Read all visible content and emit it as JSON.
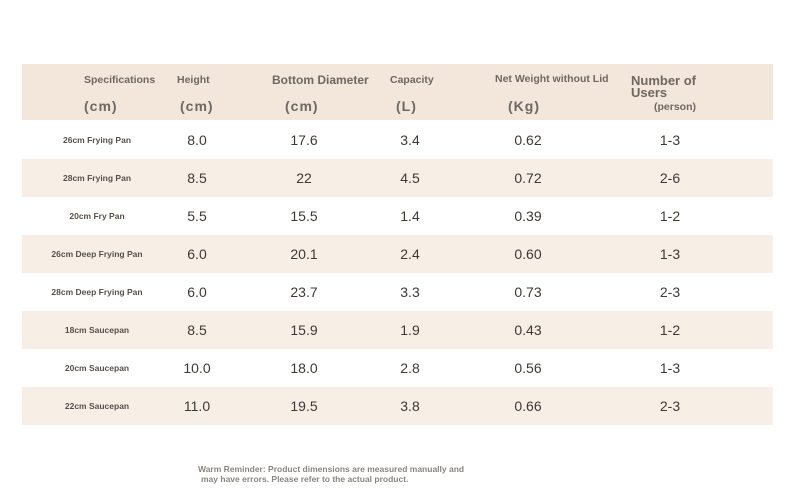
{
  "headers": [
    {
      "line1": "Specifications",
      "line2": "(cm)"
    },
    {
      "line1": "Height",
      "line2": "(cm)"
    },
    {
      "line1": "Bottom Diameter",
      "line2": "(cm)"
    },
    {
      "line1": "Capacity",
      "line2": "(L)"
    },
    {
      "line1": "Net Weight without Lid",
      "line2": "(Kg)"
    },
    {
      "line1": "Number of Users",
      "line2": "(person)"
    }
  ],
  "rows": [
    {
      "name": "26cm Frying Pan",
      "height": "8.0",
      "diameter": "17.6",
      "capacity": "3.4",
      "weight": "0.62",
      "users": "1-3"
    },
    {
      "name": "28cm Frying Pan",
      "height": "8.5",
      "diameter": "22",
      "capacity": "4.5",
      "weight": "0.72",
      "users": "2-6"
    },
    {
      "name": "20cm Fry Pan",
      "height": "5.5",
      "diameter": "15.5",
      "capacity": "1.4",
      "weight": "0.39",
      "users": "1-2"
    },
    {
      "name": "26cm Deep Frying Pan",
      "height": "6.0",
      "diameter": "20.1",
      "capacity": "2.4",
      "weight": "0.60",
      "users": "1-3"
    },
    {
      "name": "28cm Deep Frying Pan",
      "height": "6.0",
      "diameter": "23.7",
      "capacity": "3.3",
      "weight": "0.73",
      "users": "2-3"
    },
    {
      "name": "18cm Saucepan",
      "height": "8.5",
      "diameter": "15.9",
      "capacity": "1.9",
      "weight": "0.43",
      "users": "1-2"
    },
    {
      "name": "20cm Saucepan",
      "height": "10.0",
      "diameter": "18.0",
      "capacity": "2.8",
      "weight": "0.56",
      "users": "1-3"
    },
    {
      "name": "22cm Saucepan",
      "height": "11.0",
      "diameter": "19.5",
      "capacity": "3.8",
      "weight": "0.66",
      "users": "2-3"
    }
  ],
  "note": {
    "line1": "Warm Reminder: Product dimensions are measured manually and",
    "line2": "may have errors. Please refer to the actual product."
  }
}
